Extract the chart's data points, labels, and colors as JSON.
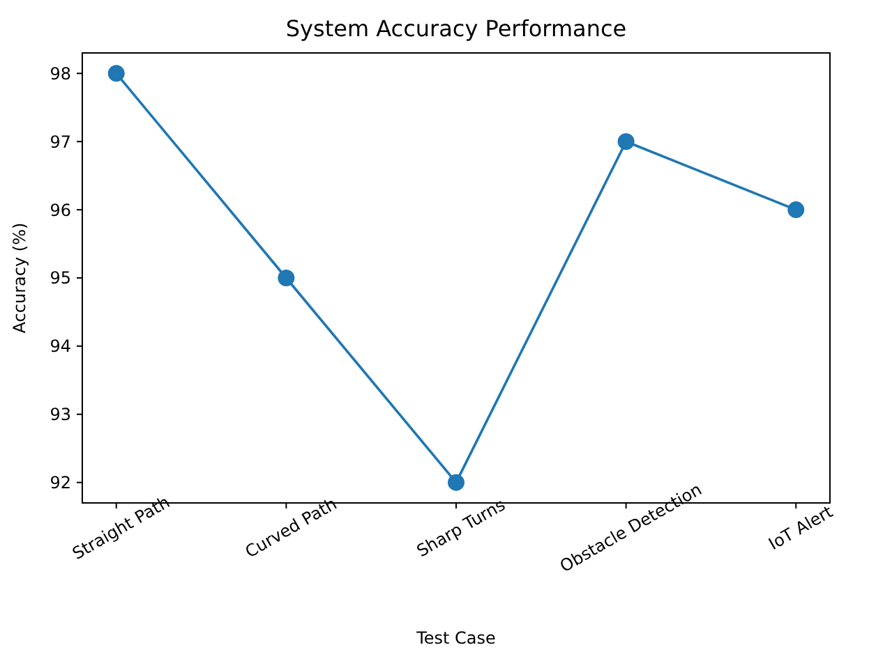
{
  "chart_data": {
    "type": "line",
    "title": "System Accuracy Performance",
    "xlabel": "Test Case",
    "ylabel": "Accuracy (%)",
    "categories": [
      "Straight Path",
      "Curved Path",
      "Sharp Turns",
      "Obstacle Detection",
      "IoT Alert"
    ],
    "series": [
      {
        "color": "#1f77b4",
        "values": [
          98,
          95,
          92,
          97,
          96
        ]
      }
    ],
    "ylim": [
      91.7,
      98.3
    ],
    "yticks": [
      92,
      93,
      94,
      95,
      96,
      97,
      98
    ],
    "marker": "circle",
    "line_style": "solid",
    "grid": false
  }
}
